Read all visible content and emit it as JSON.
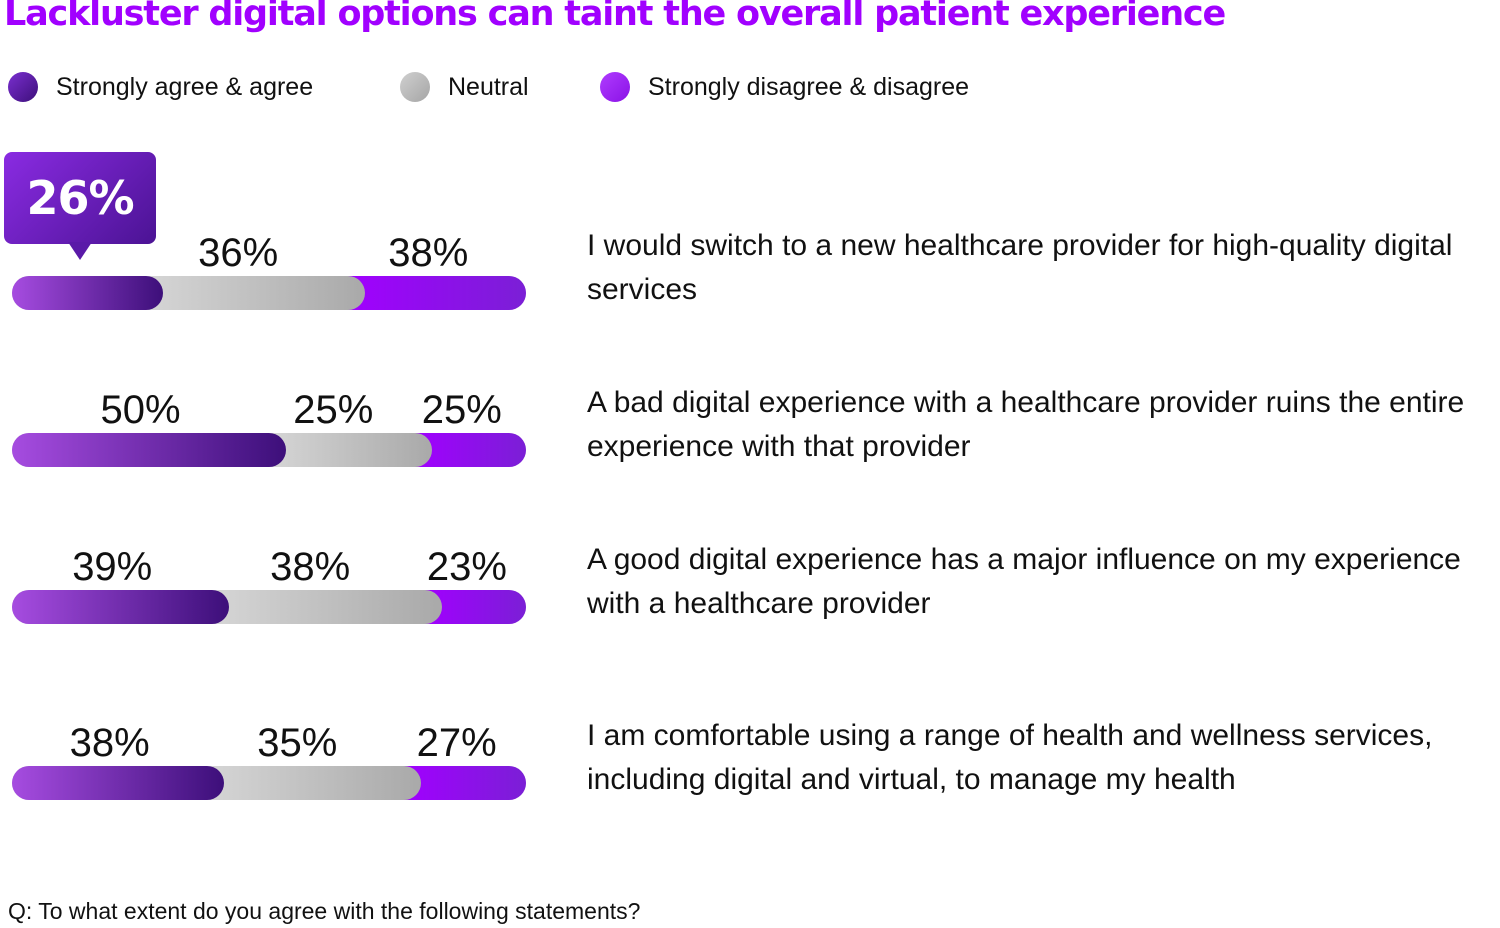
{
  "title": "Lackluster digital options can taint the overall patient experience",
  "footnote": "Q: To what extent do you agree with the following statements?",
  "colors": {
    "agree_start": "#a64ce0",
    "agree_end": "#3d0f7a",
    "neutral_start": "#d6d6d6",
    "neutral_end": "#a9a9a9",
    "disagree_start": "#a100ff",
    "disagree_end": "#7b1fd6"
  },
  "chart_data": {
    "type": "bar",
    "stacked": true,
    "orientation": "horizontal",
    "title": "Lackluster digital options can taint the overall patient experience",
    "legend": [
      {
        "name": "Strongly agree & agree",
        "color": "#4b1394"
      },
      {
        "name": "Neutral",
        "color": "#bdbdbd"
      },
      {
        "name": "Strongly disagree & disagree",
        "color": "#a100ff"
      }
    ],
    "categories": [
      "I would switch to a new healthcare provider for high-quality digital services",
      "A bad digital experience with a healthcare provider ruins the entire experience with that provider",
      "A good digital experience has a major influence on my experience with a healthcare provider",
      "I am comfortable using a range of health and wellness services, including digital and virtual, to manage my health"
    ],
    "series": [
      {
        "name": "Strongly agree & agree",
        "values": [
          26,
          50,
          39,
          38
        ]
      },
      {
        "name": "Neutral",
        "values": [
          36,
          25,
          38,
          35
        ]
      },
      {
        "name": "Strongly disagree & disagree",
        "values": [
          38,
          25,
          23,
          27
        ]
      }
    ],
    "value_labels": [
      [
        "26%",
        "36%",
        "38%"
      ],
      [
        "50%",
        "25%",
        "25%"
      ],
      [
        "39%",
        "38%",
        "23%"
      ],
      [
        "38%",
        "35%",
        "27%"
      ]
    ],
    "highlight": {
      "row": 0,
      "series": 0,
      "label": "26%"
    },
    "xlim": [
      0,
      100
    ],
    "xlabel": "",
    "ylabel": ""
  }
}
